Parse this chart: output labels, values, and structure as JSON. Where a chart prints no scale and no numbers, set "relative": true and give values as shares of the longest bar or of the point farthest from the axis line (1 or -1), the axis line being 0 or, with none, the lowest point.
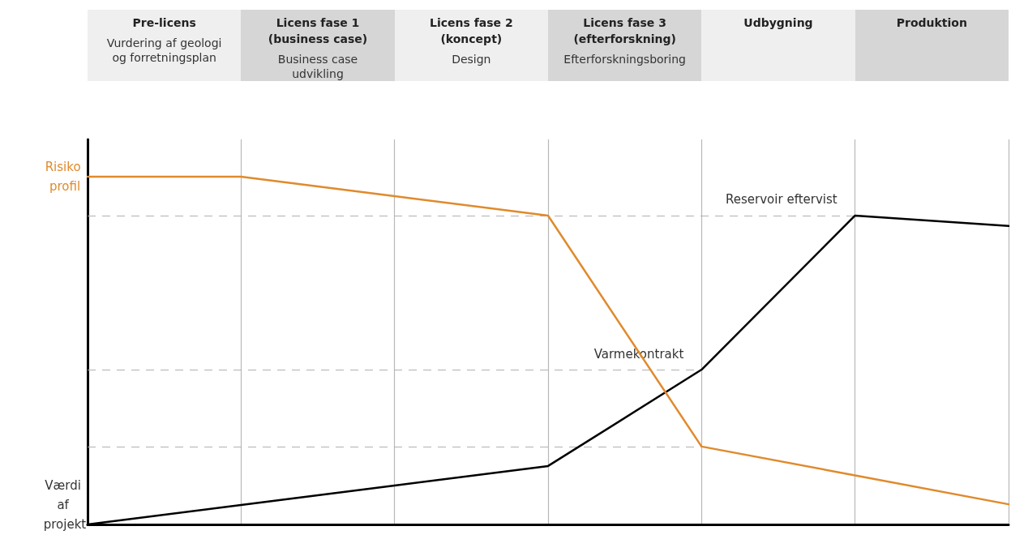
{
  "chart_data": {
    "type": "line",
    "relative": true,
    "categories": [
      null,
      null,
      null,
      null,
      null,
      null,
      null
    ],
    "series": [
      {
        "name": "Risiko profil",
        "color": "#e08a2c",
        "values": [
          1,
          1,
          0.944,
          0.888,
          0.224,
          0.141,
          0.058
        ]
      },
      {
        "name": "Værdi af projekt",
        "color": "#000000",
        "values": [
          0,
          0.056,
          0.112,
          0.168,
          0.445,
          0.888,
          0.858
        ]
      }
    ],
    "ref_lines": [
      {
        "axis": "y",
        "value": 0.888,
        "color": "#b0b0b0",
        "line_style": "dashed"
      },
      {
        "axis": "y",
        "value": 0.445,
        "color": "#b0b0b0",
        "line_style": "dashed"
      },
      {
        "axis": "y",
        "value": 0.224,
        "color": "#b0b0b0",
        "line_style": "dashed"
      }
    ],
    "annotations": [
      "Pre-licens\n\nVurdering af geologi\nog forretningsplan",
      "Licens fase 1\n(business case)\n\nBusiness case\nudvikling",
      "Licens fase 2\n(koncept)\n\nDesign",
      "Licens fase 3\n(efterforskning)\n\nEfterforskningsboring",
      "Udbygning",
      "Produktion",
      {
        "text": "Reservoir eftervist",
        "y": 0.888
      },
      {
        "text": "Varmekontrakt",
        "y": 0.445
      }
    ],
    "grid": "x",
    "legend": false,
    "marker": "none",
    "line_style": "solid"
  }
}
